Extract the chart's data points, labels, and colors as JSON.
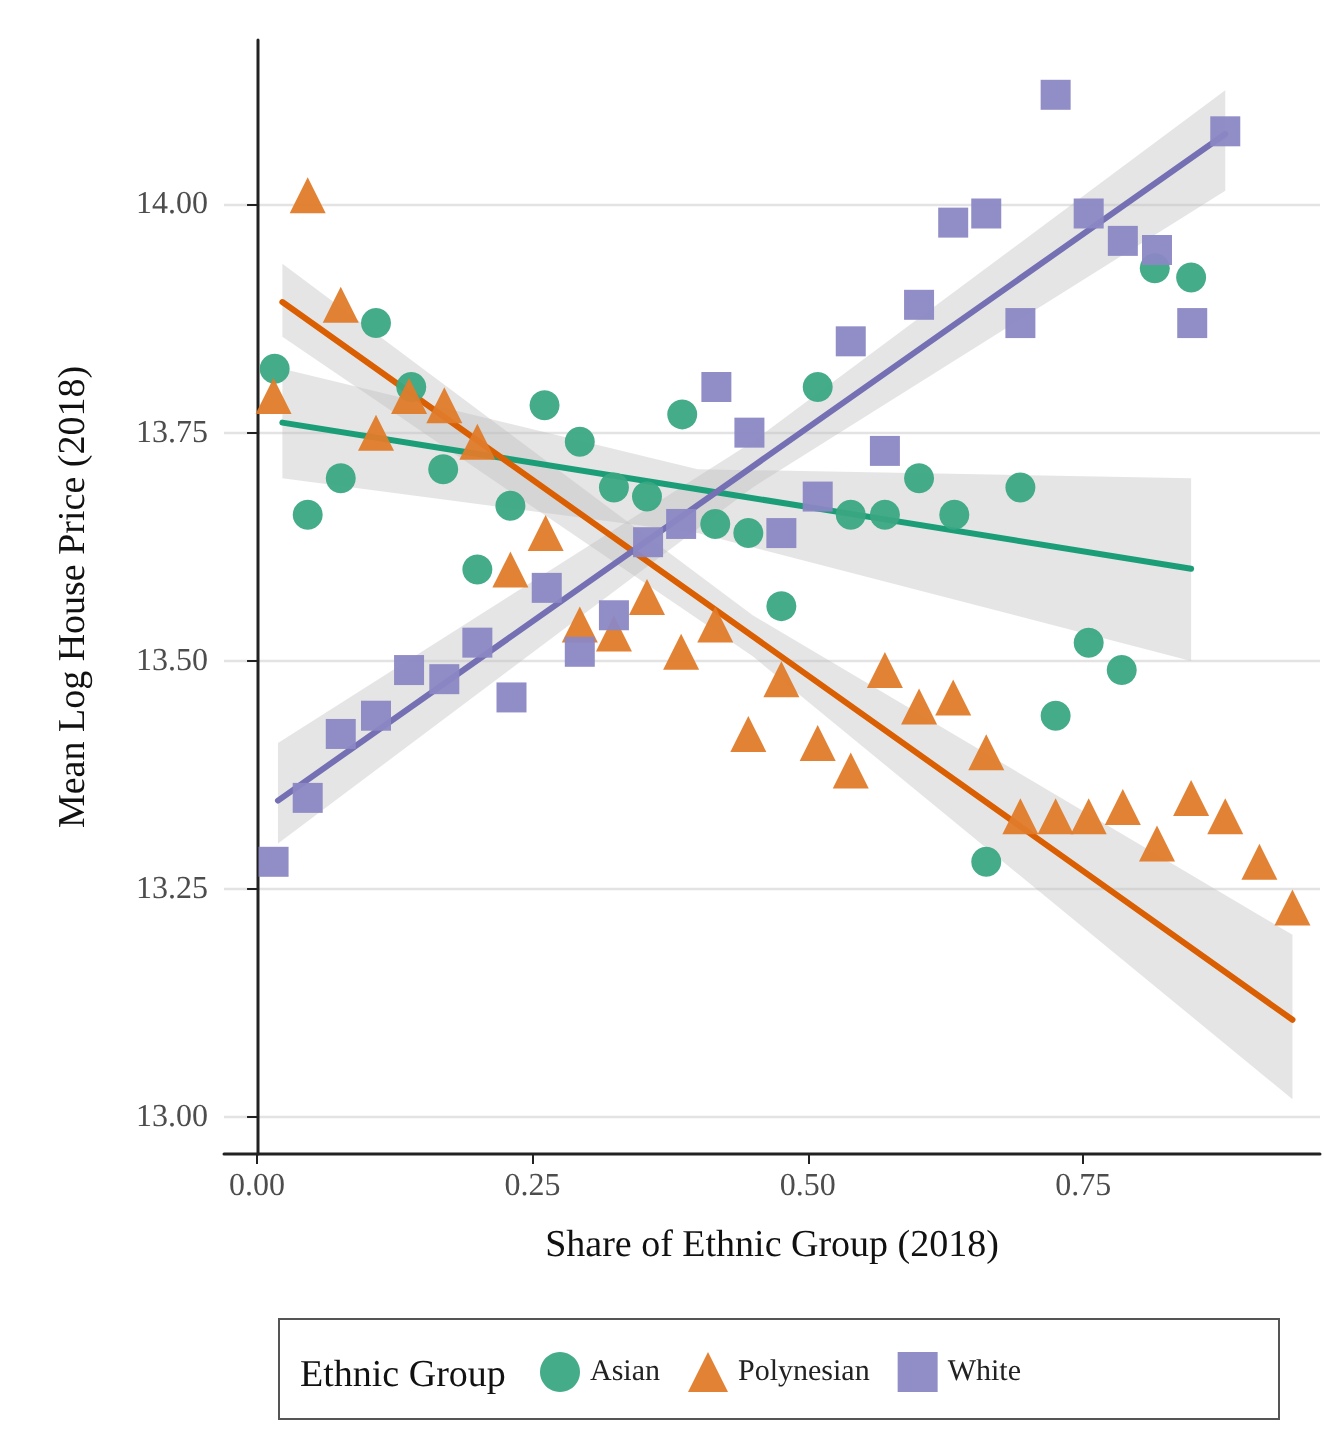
{
  "chart_data": {
    "type": "scatter",
    "xlabel": "Share of Ethnic Group (2018)",
    "ylabel": "Mean Log House Price (2018)",
    "legend_title": "Ethnic Group",
    "xlim": [
      -0.03,
      0.965
    ],
    "ylim": [
      12.96,
      14.18
    ],
    "xticks": [
      {
        "value": 0,
        "label": "0.00"
      },
      {
        "value": 0.25,
        "label": "0.25"
      },
      {
        "value": 0.5,
        "label": "0.50"
      },
      {
        "value": 0.75,
        "label": "0.75"
      }
    ],
    "yticks": [
      {
        "value": 13,
        "label": "13.00"
      },
      {
        "value": 13.25,
        "label": "13.25"
      },
      {
        "value": 13.5,
        "label": "13.50"
      },
      {
        "value": 13.75,
        "label": "13.75"
      },
      {
        "value": 14,
        "label": "14.00"
      }
    ],
    "grid": "y",
    "legend": "bottom",
    "series": [
      {
        "name": "Asian",
        "marker": "circle",
        "color": "#3aa882",
        "x": [
          0.016,
          0.046,
          0.076,
          0.108,
          0.14,
          0.169,
          0.2,
          0.23,
          0.261,
          0.293,
          0.324,
          0.354,
          0.386,
          0.416,
          0.446,
          0.476,
          0.509,
          0.539,
          0.57,
          0.601,
          0.633,
          0.662,
          0.693,
          0.725,
          0.755,
          0.785,
          0.815,
          0.848
        ],
        "values": [
          13.82,
          13.66,
          13.7,
          13.87,
          13.8,
          13.71,
          13.6,
          13.67,
          13.78,
          13.74,
          13.69,
          13.68,
          13.77,
          13.65,
          13.64,
          13.56,
          13.8,
          13.66,
          13.66,
          13.7,
          13.66,
          13.28,
          13.69,
          13.44,
          13.52,
          13.49,
          13.93,
          13.92
        ]
      },
      {
        "name": "Polynesian",
        "marker": "triangle",
        "color": "#e07b2a",
        "x": [
          0.015,
          0.046,
          0.076,
          0.108,
          0.138,
          0.17,
          0.2,
          0.23,
          0.262,
          0.293,
          0.324,
          0.354,
          0.385,
          0.416,
          0.446,
          0.476,
          0.509,
          0.539,
          0.57,
          0.601,
          0.632,
          0.662,
          0.693,
          0.725,
          0.755,
          0.786,
          0.817,
          0.848,
          0.879,
          0.91,
          0.94
        ],
        "values": [
          13.79,
          14.01,
          13.89,
          13.75,
          13.79,
          13.78,
          13.74,
          13.6,
          13.64,
          13.54,
          13.53,
          13.57,
          13.51,
          13.54,
          13.42,
          13.48,
          13.41,
          13.38,
          13.49,
          13.45,
          13.46,
          13.4,
          13.33,
          13.33,
          13.33,
          13.34,
          13.3,
          13.35,
          13.33,
          13.28,
          13.23
        ]
      },
      {
        "name": "White",
        "marker": "square",
        "color": "#8b87c4",
        "x": [
          0.015,
          0.046,
          0.076,
          0.108,
          0.138,
          0.17,
          0.2,
          0.231,
          0.263,
          0.293,
          0.324,
          0.355,
          0.385,
          0.417,
          0.447,
          0.476,
          0.509,
          0.539,
          0.57,
          0.601,
          0.632,
          0.662,
          0.693,
          0.725,
          0.755,
          0.786,
          0.817,
          0.849,
          0.879
        ],
        "values": [
          13.28,
          13.35,
          13.42,
          13.44,
          13.49,
          13.48,
          13.52,
          13.46,
          13.58,
          13.51,
          13.55,
          13.63,
          13.65,
          13.8,
          13.75,
          13.64,
          13.68,
          13.85,
          13.73,
          13.89,
          13.98,
          13.99,
          13.87,
          14.12,
          13.99,
          13.96,
          13.95,
          13.87,
          14.08
        ]
      },
      {
        "type": "line",
        "color": "#1b9e77",
        "x": [
          0.023,
          0.4,
          0.848
        ],
        "values": [
          13.761,
          13.688,
          13.601
        ],
        "lower": [
          13.7,
          13.64,
          13.5
        ],
        "upper": [
          13.82,
          13.71,
          13.7
        ]
      },
      {
        "type": "line",
        "color": "#d95f02",
        "x": [
          0.023,
          0.45,
          0.94
        ],
        "values": [
          13.893,
          13.527,
          13.107
        ],
        "lower": [
          13.855,
          13.505,
          13.02
        ],
        "upper": [
          13.935,
          13.55,
          13.2
        ]
      },
      {
        "type": "line",
        "color": "#7570b3",
        "x": [
          0.019,
          0.45,
          0.879
        ],
        "values": [
          13.347,
          13.713,
          14.077
        ],
        "lower": [
          13.3,
          13.69,
          14.015
        ],
        "upper": [
          13.41,
          13.74,
          14.125
        ]
      }
    ]
  }
}
